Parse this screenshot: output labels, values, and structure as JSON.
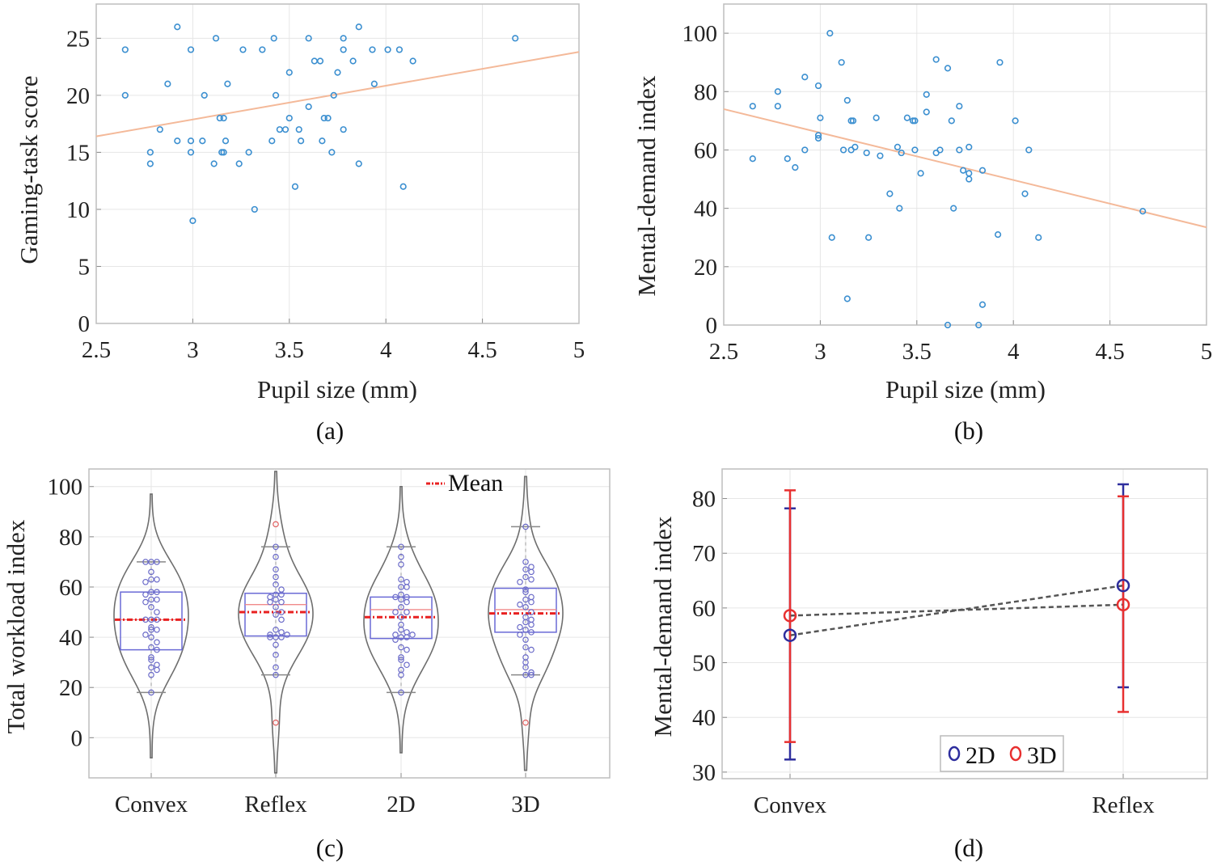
{
  "chart_data": [
    {
      "panel_label": "(a)",
      "type": "scatter",
      "xlabel": "Pupil size (mm)",
      "ylabel": "Gaming-task score",
      "xlim": [
        2.5,
        5
      ],
      "ylim": [
        0,
        28
      ],
      "xticks": [
        2.5,
        3,
        3.5,
        4,
        4.5,
        5
      ],
      "xtick_labels": [
        "2.5",
        "3",
        "3.5",
        "4",
        "4.5",
        "5"
      ],
      "yticks": [
        0,
        5,
        10,
        15,
        20,
        25
      ],
      "ytick_labels": [
        "0",
        "5",
        "10",
        "15",
        "20",
        "25"
      ],
      "grid": true,
      "point_color": "#3b8fd0",
      "trend_color": "#f4b999",
      "trend_line": {
        "x": [
          2.5,
          5
        ],
        "y": [
          16.4,
          23.8
        ]
      },
      "points": [
        [
          2.65,
          24
        ],
        [
          2.65,
          20
        ],
        [
          2.78,
          15
        ],
        [
          2.78,
          14
        ],
        [
          2.83,
          17
        ],
        [
          2.87,
          21
        ],
        [
          2.92,
          26
        ],
        [
          2.92,
          16
        ],
        [
          2.99,
          24
        ],
        [
          2.99,
          16
        ],
        [
          2.99,
          15
        ],
        [
          3.0,
          9
        ],
        [
          3.05,
          16
        ],
        [
          3.06,
          20
        ],
        [
          3.11,
          14
        ],
        [
          3.12,
          25
        ],
        [
          3.14,
          18
        ],
        [
          3.16,
          18
        ],
        [
          3.15,
          15
        ],
        [
          3.16,
          15
        ],
        [
          3.17,
          16
        ],
        [
          3.18,
          21
        ],
        [
          3.24,
          14
        ],
        [
          3.26,
          24
        ],
        [
          3.29,
          15
        ],
        [
          3.32,
          10
        ],
        [
          3.36,
          24
        ],
        [
          3.41,
          16
        ],
        [
          3.42,
          25
        ],
        [
          3.43,
          20
        ],
        [
          3.45,
          17
        ],
        [
          3.48,
          17
        ],
        [
          3.5,
          22
        ],
        [
          3.5,
          18
        ],
        [
          3.53,
          12
        ],
        [
          3.55,
          17
        ],
        [
          3.56,
          16
        ],
        [
          3.6,
          19
        ],
        [
          3.6,
          25
        ],
        [
          3.63,
          23
        ],
        [
          3.66,
          23
        ],
        [
          3.67,
          16
        ],
        [
          3.68,
          18
        ],
        [
          3.7,
          18
        ],
        [
          3.73,
          20
        ],
        [
          3.72,
          15
        ],
        [
          3.75,
          22
        ],
        [
          3.78,
          24
        ],
        [
          3.78,
          25
        ],
        [
          3.78,
          17
        ],
        [
          3.83,
          23
        ],
        [
          3.86,
          26
        ],
        [
          3.86,
          14
        ],
        [
          3.93,
          24
        ],
        [
          3.94,
          21
        ],
        [
          4.01,
          24
        ],
        [
          4.07,
          24
        ],
        [
          4.09,
          12
        ],
        [
          4.14,
          23
        ],
        [
          4.67,
          25
        ]
      ]
    },
    {
      "panel_label": "(b)",
      "type": "scatter",
      "xlabel": "Pupil size (mm)",
      "ylabel": "Mental-demand index",
      "xlim": [
        2.5,
        5
      ],
      "ylim": [
        0,
        110
      ],
      "xticks": [
        2.5,
        3,
        3.5,
        4,
        4.5,
        5
      ],
      "xtick_labels": [
        "2.5",
        "3",
        "3.5",
        "4",
        "4.5",
        "5"
      ],
      "yticks": [
        0,
        20,
        40,
        60,
        80,
        100
      ],
      "ytick_labels": [
        "0",
        "20",
        "40",
        "60",
        "80",
        "100"
      ],
      "grid": true,
      "point_color": "#3b8fd0",
      "trend_color": "#f4b999",
      "trend_line": {
        "x": [
          2.5,
          5
        ],
        "y": [
          74,
          33.5
        ]
      },
      "points": [
        [
          2.65,
          75
        ],
        [
          2.65,
          57
        ],
        [
          2.78,
          75
        ],
        [
          2.78,
          80
        ],
        [
          2.83,
          57
        ],
        [
          2.87,
          54
        ],
        [
          2.92,
          85
        ],
        [
          2.92,
          60
        ],
        [
          2.99,
          82
        ],
        [
          2.99,
          65
        ],
        [
          2.99,
          64
        ],
        [
          3.0,
          71
        ],
        [
          3.05,
          100
        ],
        [
          3.06,
          30
        ],
        [
          3.11,
          90
        ],
        [
          3.12,
          60
        ],
        [
          3.14,
          77
        ],
        [
          3.14,
          9
        ],
        [
          3.16,
          60
        ],
        [
          3.16,
          70
        ],
        [
          3.17,
          70
        ],
        [
          3.18,
          61
        ],
        [
          3.24,
          59
        ],
        [
          3.25,
          30
        ],
        [
          3.29,
          71
        ],
        [
          3.31,
          58
        ],
        [
          3.36,
          45
        ],
        [
          3.4,
          61
        ],
        [
          3.41,
          40
        ],
        [
          3.42,
          59
        ],
        [
          3.45,
          71
        ],
        [
          3.48,
          70
        ],
        [
          3.49,
          70
        ],
        [
          3.49,
          60
        ],
        [
          3.52,
          52
        ],
        [
          3.55,
          79
        ],
        [
          3.55,
          73
        ],
        [
          3.6,
          91
        ],
        [
          3.6,
          59
        ],
        [
          3.62,
          60
        ],
        [
          3.66,
          88
        ],
        [
          3.66,
          0
        ],
        [
          3.68,
          70
        ],
        [
          3.69,
          40
        ],
        [
          3.72,
          75
        ],
        [
          3.72,
          60
        ],
        [
          3.74,
          53
        ],
        [
          3.77,
          52
        ],
        [
          3.77,
          50
        ],
        [
          3.77,
          61
        ],
        [
          3.82,
          0
        ],
        [
          3.84,
          53
        ],
        [
          3.84,
          7
        ],
        [
          3.92,
          31
        ],
        [
          3.93,
          90
        ],
        [
          4.01,
          70
        ],
        [
          4.06,
          45
        ],
        [
          4.08,
          60
        ],
        [
          4.13,
          30
        ],
        [
          4.67,
          39
        ]
      ]
    },
    {
      "panel_label": "(c)",
      "type": "violin",
      "xlabel": "",
      "ylabel": "Total workload index",
      "ylim": [
        -16,
        107
      ],
      "yticks": [
        0,
        20,
        40,
        60,
        80,
        100
      ],
      "ytick_labels": [
        "0",
        "20",
        "40",
        "60",
        "80",
        "100"
      ],
      "grid": true,
      "legend": {
        "entries": [
          "Mean"
        ],
        "placement": "top-right"
      },
      "colors": {
        "violin": "#6e6e6e",
        "box": "#6a6ad6",
        "mean": "#e82020",
        "median": "#f08a8a",
        "points": "#6a6ac8",
        "outlier": "#e06060"
      },
      "categories": [
        "Convex",
        "Reflex",
        "2D",
        "3D"
      ],
      "groups": [
        {
          "name": "Convex",
          "q1": 35,
          "median": 47,
          "q3": 58,
          "mean": 47,
          "whisker_low": 18,
          "whisker_high": 70,
          "kde_range": [
            -8,
            97
          ],
          "outliers": [],
          "points": [
            70,
            70,
            70,
            66,
            63,
            63,
            62,
            58,
            58,
            57,
            55,
            55,
            54,
            52,
            50,
            47,
            47,
            47,
            44,
            43,
            43,
            41,
            40,
            38,
            36,
            35,
            32,
            31,
            29,
            28,
            27,
            25,
            18
          ]
        },
        {
          "name": "Reflex",
          "q1": 40.5,
          "median": 53,
          "q3": 57.5,
          "mean": 50,
          "whisker_low": 25,
          "whisker_high": 76,
          "kde_range": [
            -14,
            106
          ],
          "outliers": [
            85,
            6
          ],
          "points": [
            76,
            72,
            67,
            64,
            61,
            59,
            57,
            57,
            56,
            55,
            54,
            54,
            52,
            50,
            49,
            47,
            43,
            42,
            41,
            41,
            40,
            40,
            40,
            37,
            33,
            28,
            25
          ]
        },
        {
          "name": "2D",
          "q1": 39.5,
          "median": 51,
          "q3": 56,
          "mean": 48,
          "whisker_low": 18,
          "whisker_high": 76,
          "kde_range": [
            -6,
            100
          ],
          "outliers": [],
          "points": [
            76,
            72,
            69,
            63,
            62,
            60,
            60,
            57,
            56,
            56,
            55,
            54,
            52,
            50,
            50,
            48,
            45,
            43,
            42,
            41,
            41,
            40,
            40,
            39,
            36,
            35,
            32,
            31,
            29,
            27,
            25,
            18
          ]
        },
        {
          "name": "3D",
          "q1": 42,
          "median": 51,
          "q3": 59.5,
          "mean": 49.5,
          "whisker_low": 25,
          "whisker_high": 84,
          "kde_range": [
            -13,
            104
          ],
          "outliers": [
            6
          ],
          "points": [
            84,
            70,
            68,
            67,
            66,
            64,
            63,
            62,
            59,
            58,
            56,
            55,
            54,
            53,
            52,
            50,
            48,
            47,
            46,
            45,
            44,
            43,
            42,
            41,
            39,
            36,
            35,
            32,
            30,
            28,
            26,
            25,
            25
          ]
        }
      ]
    },
    {
      "panel_label": "(d)",
      "type": "errorbar",
      "xlabel": "",
      "ylabel": "Mental-demand index",
      "ylim": [
        28.8,
        85.4
      ],
      "yticks": [
        30,
        40,
        50,
        60,
        70,
        80
      ],
      "ytick_labels": [
        "30",
        "40",
        "50",
        "60",
        "70",
        "80"
      ],
      "grid": true,
      "categories": [
        "Convex",
        "Reflex"
      ],
      "legend": {
        "placement": "bottom"
      },
      "series": [
        {
          "name": "2D",
          "color": "#2e2e9e",
          "mean": [
            55,
            64.1
          ],
          "low": [
            32.3,
            45.5
          ],
          "high": [
            78.2,
            82.6
          ]
        },
        {
          "name": "3D",
          "color": "#e83030",
          "mean": [
            58.6,
            60.6
          ],
          "low": [
            35.5,
            41
          ],
          "high": [
            81.5,
            80.4
          ]
        }
      ]
    }
  ]
}
